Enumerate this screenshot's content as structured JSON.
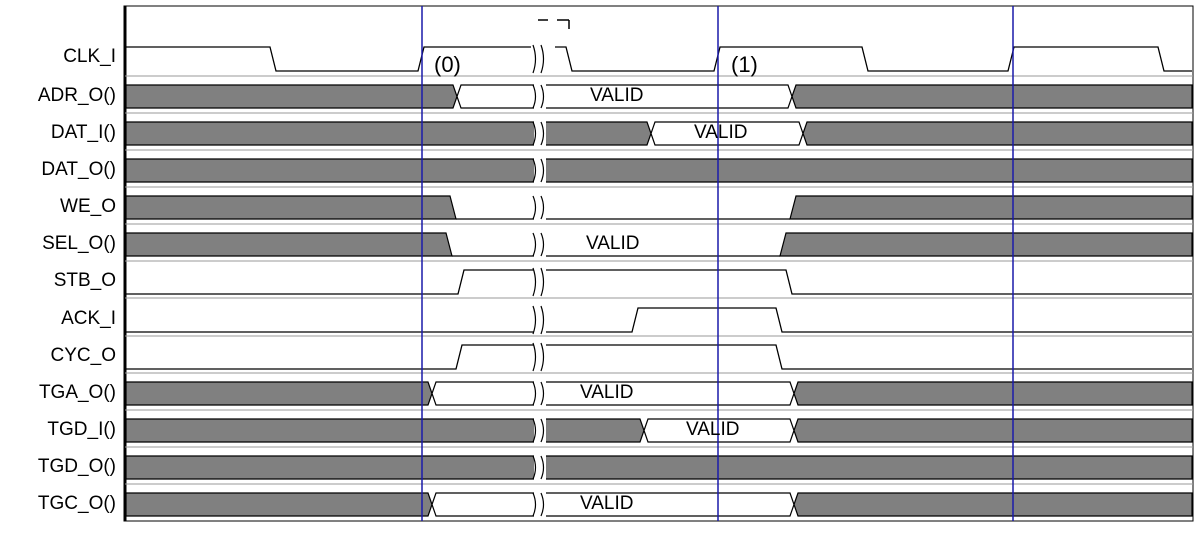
{
  "diagram": {
    "signals": [
      {
        "label": "CLK_I"
      },
      {
        "label": "ADR_O()"
      },
      {
        "label": "DAT_I()"
      },
      {
        "label": "DAT_O()"
      },
      {
        "label": "WE_O"
      },
      {
        "label": "SEL_O()"
      },
      {
        "label": "STB_O"
      },
      {
        "label": "ACK_I"
      },
      {
        "label": "CYC_O"
      },
      {
        "label": "TGA_O()"
      },
      {
        "label": "TGD_I()"
      },
      {
        "label": "TGD_O()"
      },
      {
        "label": "TGC_O()"
      }
    ],
    "cycle_labels": [
      "(0)",
      "(1)"
    ],
    "valid_text": "VALID",
    "colors": {
      "bus_fill": "#808080",
      "trace": "#000000",
      "marker_line": "#1a1aaa",
      "row_divider": "#9a9a9a"
    }
  }
}
